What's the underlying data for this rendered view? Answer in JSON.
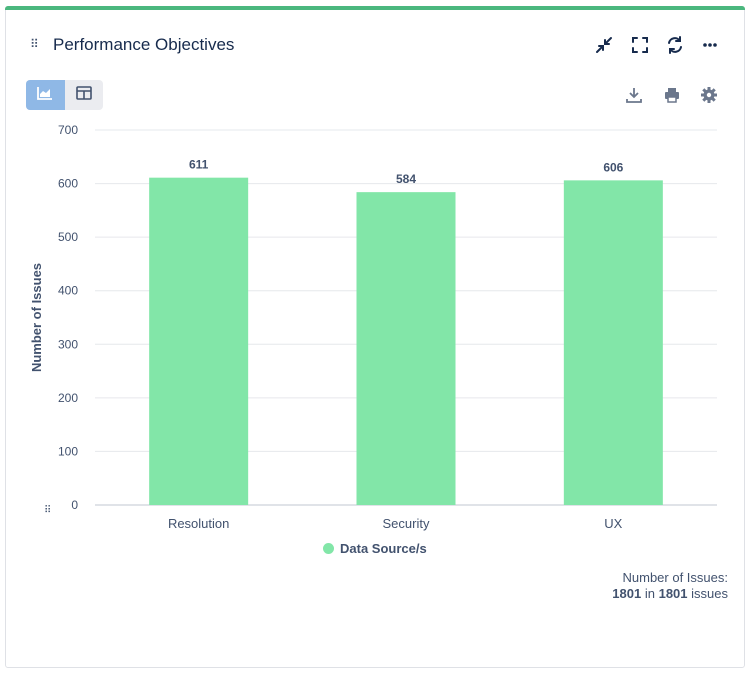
{
  "header": {
    "title": "Performance Objectives"
  },
  "toolbar": {
    "icons": [
      "collapse-icon",
      "fullscreen-icon",
      "refresh-icon",
      "more-icon"
    ],
    "view_icons": [
      "chart-view-icon",
      "table-view-icon"
    ],
    "action_icons": [
      "download-icon",
      "print-icon",
      "settings-icon"
    ]
  },
  "colors": {
    "accent": "#4bb77e",
    "bar": "#82e6a8",
    "active_view": "#8fb8e6"
  },
  "chart_data": {
    "type": "bar",
    "categories": [
      "Resolution",
      "Security",
      "UX"
    ],
    "series": [
      {
        "name": "Data Source/s",
        "values": [
          611,
          584,
          606
        ]
      }
    ],
    "ylabel": "Number of Issues",
    "xlabel": "",
    "ylim": [
      0,
      700
    ],
    "yticks": [
      0,
      100,
      200,
      300,
      400,
      500,
      600,
      700
    ],
    "grid": true,
    "legend": "bottom"
  },
  "legend": {
    "label": "Data Source/s"
  },
  "summary": {
    "label": "Number of Issues:",
    "count": "1801",
    "in_text": "in",
    "total": "1801",
    "suffix": "issues"
  }
}
